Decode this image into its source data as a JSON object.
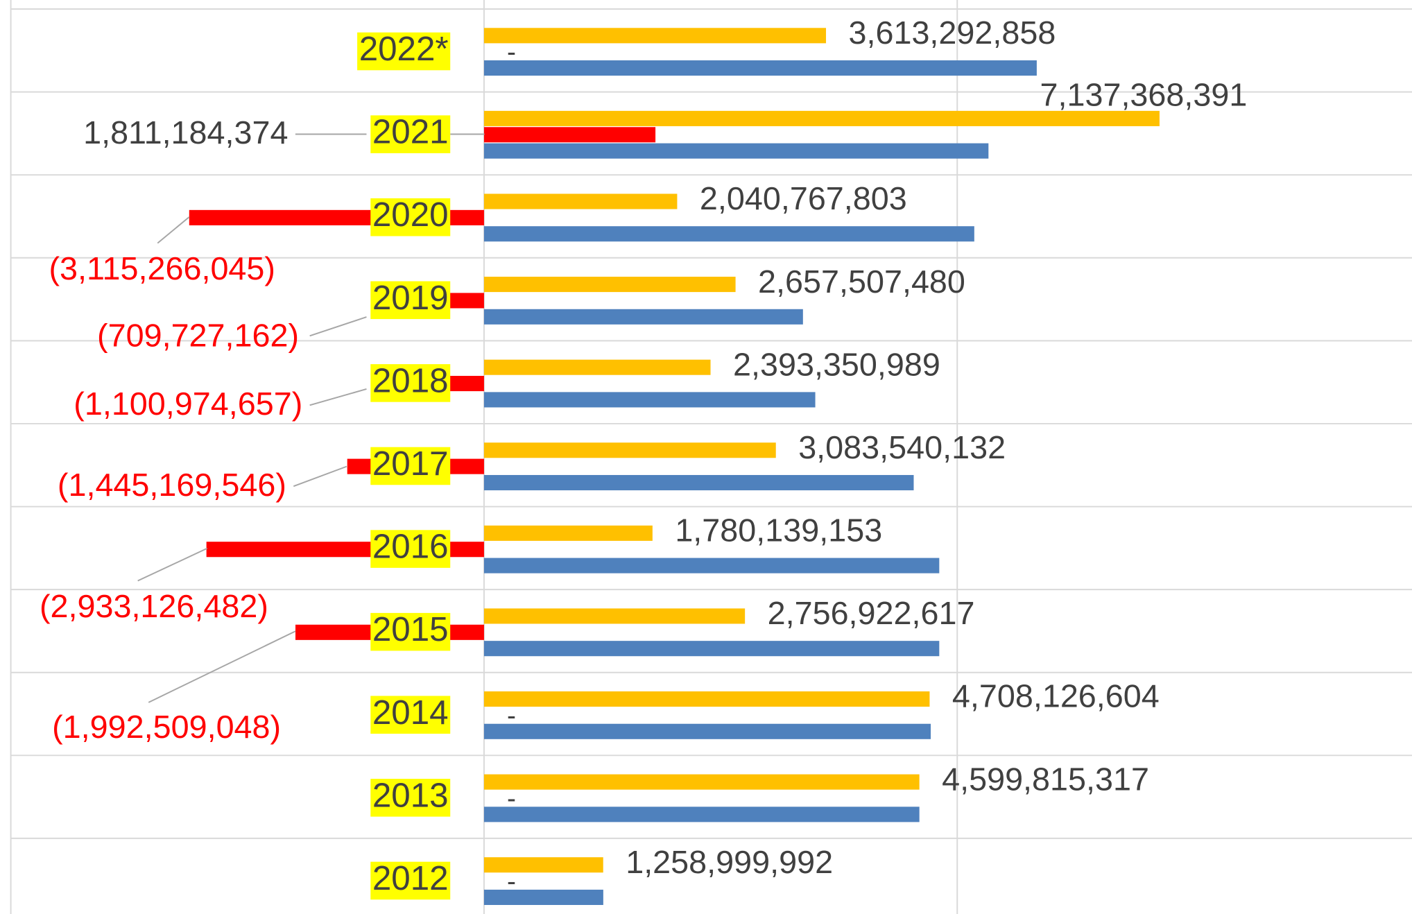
{
  "chart_data": {
    "type": "bar",
    "orientation": "horizontal",
    "categories": [
      "2022*",
      "2021",
      "2020",
      "2019",
      "2018",
      "2017",
      "2016",
      "2015",
      "2014",
      "2013",
      "2012"
    ],
    "series": [
      {
        "color": "#ffc000",
        "values": [
          3613292858,
          7137368391,
          2040767803,
          2657507480,
          2393350989,
          3083540132,
          1780139153,
          2756922617,
          4708126604,
          4599815317,
          1258999992
        ],
        "value_labels": [
          "3,613,292,858",
          "7,137,368,391",
          "2,040,767,803",
          "2,657,507,480",
          "2,393,350,989",
          "3,083,540,132",
          "1,780,139,153",
          "2,756,922,617",
          "4,708,126,604",
          "4,599,815,317",
          "1,258,999,992"
        ]
      },
      {
        "color": "#ff0000",
        "values": [
          0,
          1811184374,
          -3115266045,
          -709727162,
          -1100974657,
          -1445169546,
          -2933126482,
          -1992509048,
          0,
          0,
          0
        ],
        "value_labels": [
          "-",
          "1,811,184,374",
          "(3,115,266,045)",
          "(709,727,162)",
          "(1,100,974,657)",
          "(1,445,169,546)",
          "(2,933,126,482)",
          "(1,992,509,048)",
          "-",
          "-",
          "-"
        ]
      },
      {
        "color": "#4f81bd",
        "values": [
          5840000000,
          5330000000,
          5180000000,
          3370000000,
          3500000000,
          4540000000,
          4810000000,
          4810000000,
          4720000000,
          4600000000,
          1260000000
        ]
      }
    ],
    "xlim": [
      -5000000000,
      9800000000
    ],
    "xticks": [
      -5000000000,
      0,
      5000000000
    ],
    "grid": true,
    "category_highlight": "#ffff00"
  }
}
